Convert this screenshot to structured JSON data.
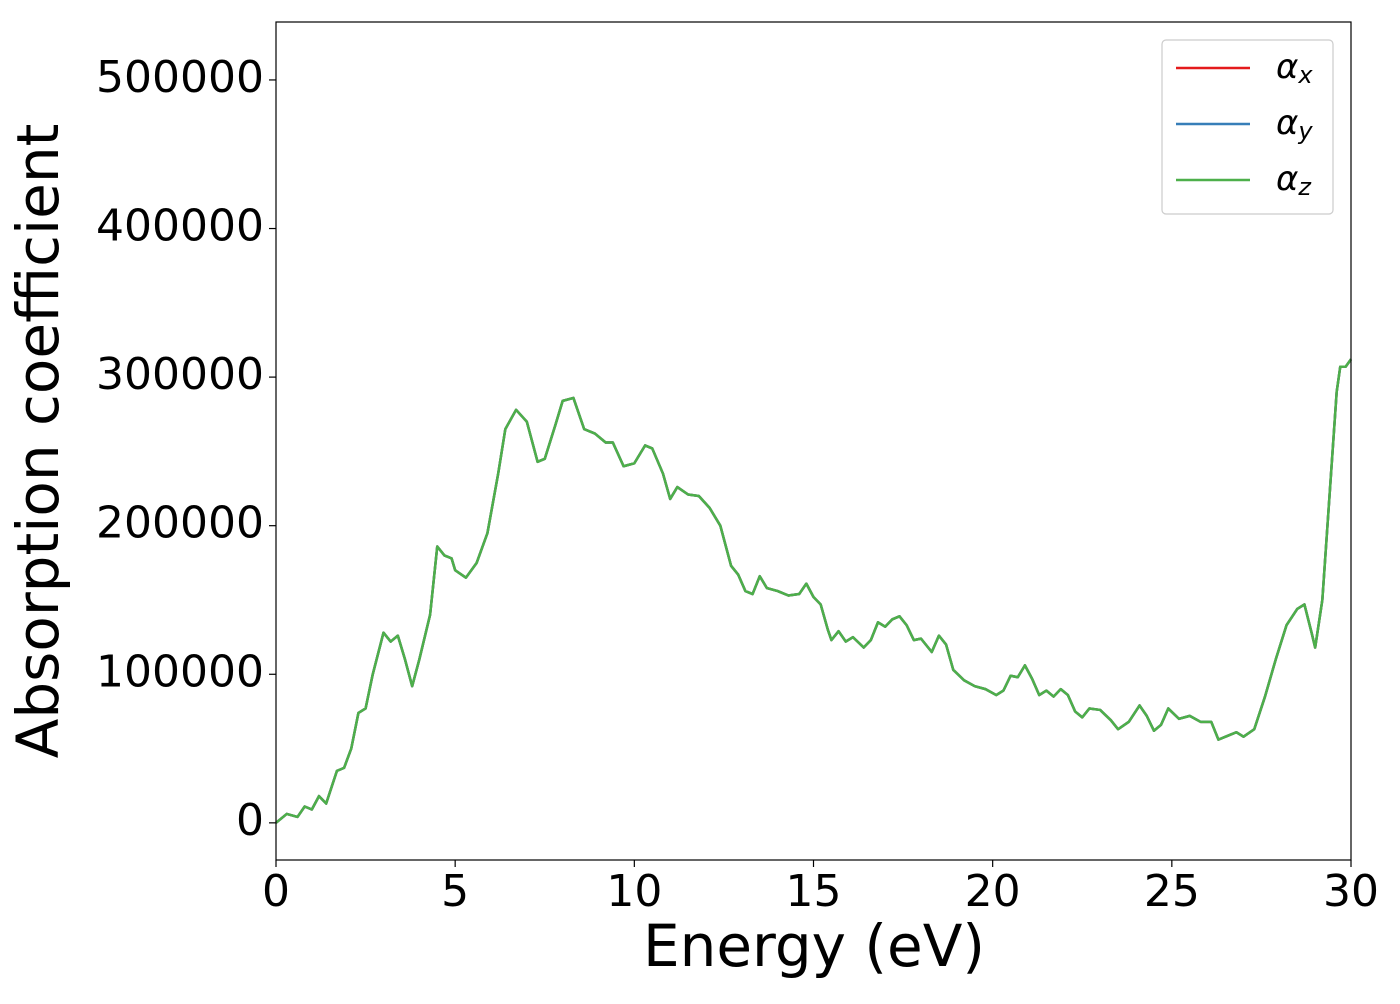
{
  "chart_data": {
    "type": "line",
    "x_label": "Energy (eV)",
    "y_label": "Absorption coefficient",
    "x": [
      0,
      0.3,
      0.6,
      0.8,
      1.0,
      1.2,
      1.4,
      1.7,
      1.9,
      2.1,
      2.3,
      2.5,
      2.7,
      3.0,
      3.2,
      3.4,
      3.6,
      3.8,
      4.0,
      4.3,
      4.5,
      4.7,
      4.9,
      5.0,
      5.3,
      5.6,
      5.9,
      6.2,
      6.4,
      6.7,
      7.0,
      7.3,
      7.5,
      7.8,
      8.0,
      8.3,
      8.6,
      8.9,
      9.2,
      9.4,
      9.7,
      10.0,
      10.3,
      10.5,
      10.8,
      11.0,
      11.2,
      11.5,
      11.8,
      12.1,
      12.4,
      12.7,
      12.9,
      13.1,
      13.3,
      13.5,
      13.7,
      14.0,
      14.3,
      14.6,
      14.8,
      15.0,
      15.2,
      15.4,
      15.5,
      15.7,
      15.9,
      16.1,
      16.4,
      16.6,
      16.8,
      17.0,
      17.2,
      17.4,
      17.6,
      17.8,
      18.0,
      18.3,
      18.5,
      18.7,
      18.9,
      19.2,
      19.5,
      19.8,
      20.1,
      20.3,
      20.5,
      20.7,
      20.9,
      21.1,
      21.3,
      21.5,
      21.7,
      21.9,
      22.1,
      22.3,
      22.5,
      22.7,
      23.0,
      23.3,
      23.5,
      23.8,
      24.1,
      24.3,
      24.5,
      24.7,
      24.9,
      25.2,
      25.5,
      25.8,
      26.1,
      26.3,
      26.6,
      26.8,
      27.0,
      27.3,
      27.6,
      27.9,
      28.2,
      28.5,
      28.7,
      28.9,
      29.0,
      29.2,
      29.4,
      29.6,
      29.7,
      29.85,
      30.0
    ],
    "series": [
      {
        "name": "αx",
        "color": "#e41a1c",
        "values": [
          0,
          6000,
          4000,
          11000,
          9000,
          18000,
          13000,
          35000,
          37000,
          50000,
          74000,
          77000,
          100000,
          128000,
          122000,
          126000,
          110000,
          92000,
          110000,
          140000,
          186000,
          180000,
          178000,
          170000,
          165000,
          175000,
          195000,
          235000,
          265000,
          278000,
          270000,
          243000,
          245000,
          268000,
          284000,
          286000,
          265000,
          262000,
          256000,
          256000,
          240000,
          242000,
          254000,
          252000,
          235000,
          218000,
          226000,
          221000,
          220000,
          212000,
          200000,
          173000,
          167000,
          156000,
          154000,
          166000,
          158000,
          156000,
          153000,
          154000,
          161000,
          152000,
          147000,
          130000,
          123000,
          129000,
          122000,
          125000,
          118000,
          123000,
          135000,
          132000,
          137000,
          139000,
          133000,
          123000,
          124000,
          115000,
          126000,
          120000,
          103000,
          96000,
          92000,
          90000,
          86000,
          89000,
          99000,
          98000,
          106000,
          97000,
          86000,
          89000,
          85000,
          90000,
          86000,
          75000,
          71000,
          77000,
          76000,
          69000,
          63000,
          68000,
          79000,
          72000,
          62000,
          66000,
          77000,
          70000,
          72000,
          68000,
          68000,
          56000,
          59000,
          61000,
          58000,
          63000,
          85000,
          110000,
          133000,
          144000,
          147000,
          128000,
          118000,
          150000,
          220000,
          290000,
          307000,
          307000,
          312000
        ]
      },
      {
        "name": "αy",
        "color": "#377eb8",
        "values": [
          0,
          6000,
          4000,
          11000,
          9000,
          18000,
          13000,
          35000,
          37000,
          50000,
          74000,
          77000,
          100000,
          128000,
          122000,
          126000,
          110000,
          92000,
          110000,
          140000,
          186000,
          180000,
          178000,
          170000,
          165000,
          175000,
          195000,
          235000,
          265000,
          278000,
          270000,
          243000,
          245000,
          268000,
          284000,
          286000,
          265000,
          262000,
          256000,
          256000,
          240000,
          242000,
          254000,
          252000,
          235000,
          218000,
          226000,
          221000,
          220000,
          212000,
          200000,
          173000,
          167000,
          156000,
          154000,
          166000,
          158000,
          156000,
          153000,
          154000,
          161000,
          152000,
          147000,
          130000,
          123000,
          129000,
          122000,
          125000,
          118000,
          123000,
          135000,
          132000,
          137000,
          139000,
          133000,
          123000,
          124000,
          115000,
          126000,
          120000,
          103000,
          96000,
          92000,
          90000,
          86000,
          89000,
          99000,
          98000,
          106000,
          97000,
          86000,
          89000,
          85000,
          90000,
          86000,
          75000,
          71000,
          77000,
          76000,
          69000,
          63000,
          68000,
          79000,
          72000,
          62000,
          66000,
          77000,
          70000,
          72000,
          68000,
          68000,
          56000,
          59000,
          61000,
          58000,
          63000,
          85000,
          110000,
          133000,
          144000,
          147000,
          128000,
          118000,
          150000,
          220000,
          290000,
          307000,
          307000,
          312000
        ]
      },
      {
        "name": "αz",
        "color": "#4daf4a",
        "values": [
          0,
          6000,
          4000,
          11000,
          9000,
          18000,
          13000,
          35000,
          37000,
          50000,
          74000,
          77000,
          100000,
          128000,
          122000,
          126000,
          110000,
          92000,
          110000,
          140000,
          186000,
          180000,
          178000,
          170000,
          165000,
          175000,
          195000,
          235000,
          265000,
          278000,
          270000,
          243000,
          245000,
          268000,
          284000,
          286000,
          265000,
          262000,
          256000,
          256000,
          240000,
          242000,
          254000,
          252000,
          235000,
          218000,
          226000,
          221000,
          220000,
          212000,
          200000,
          173000,
          167000,
          156000,
          154000,
          166000,
          158000,
          156000,
          153000,
          154000,
          161000,
          152000,
          147000,
          130000,
          123000,
          129000,
          122000,
          125000,
          118000,
          123000,
          135000,
          132000,
          137000,
          139000,
          133000,
          123000,
          124000,
          115000,
          126000,
          120000,
          103000,
          96000,
          92000,
          90000,
          86000,
          89000,
          99000,
          98000,
          106000,
          97000,
          86000,
          89000,
          85000,
          90000,
          86000,
          75000,
          71000,
          77000,
          76000,
          69000,
          63000,
          68000,
          79000,
          72000,
          62000,
          66000,
          77000,
          70000,
          72000,
          68000,
          68000,
          56000,
          59000,
          61000,
          58000,
          63000,
          85000,
          110000,
          133000,
          144000,
          147000,
          128000,
          118000,
          150000,
          220000,
          290000,
          307000,
          307000,
          312000
        ]
      }
    ],
    "xlim": [
      0,
      30
    ],
    "xticks": [
      0,
      5,
      10,
      15,
      20,
      25,
      30
    ],
    "ylim": [
      -25000,
      539000
    ],
    "yticks": [
      0,
      100000,
      200000,
      300000,
      400000,
      500000
    ],
    "legend": "upper right",
    "grid": false
  }
}
